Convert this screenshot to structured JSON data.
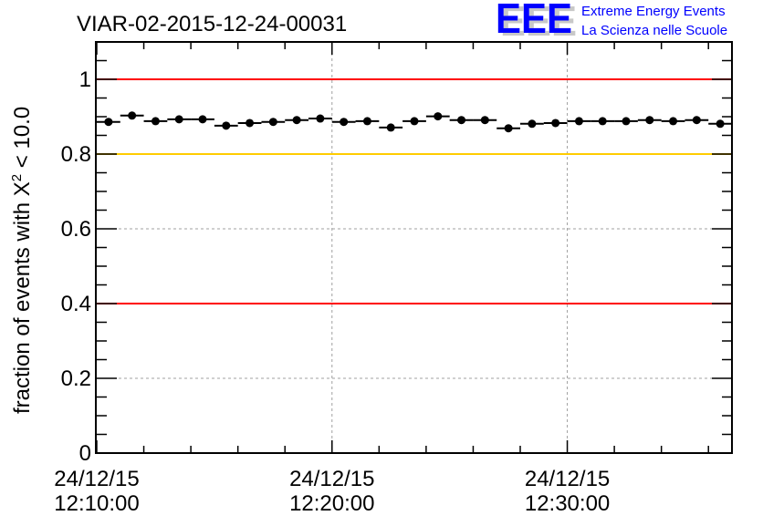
{
  "logo": {
    "letters": "EEE",
    "line1": "Extreme Energy Events",
    "line2": "La Scienza nelle Scuole"
  },
  "colors": {
    "logo": "#0000ff",
    "red_line": "#ff0000",
    "yellow_line": "#ffcc00",
    "grid": "#a0a0a0"
  },
  "chart_data": {
    "type": "scatter",
    "title": "VIAR-02-2015-12-24-00031",
    "ylabel": "fraction of events with X",
    "ylabel_sup": "2",
    "ylabel_suffix": " < 10.0",
    "xlabel": "",
    "x_unit": "minutes after 24/12/15 12:10:00",
    "xlim": [
      0,
      27
    ],
    "ylim": [
      0,
      1.1
    ],
    "grid": true,
    "y_ticks": [
      {
        "value": 0,
        "label": "0"
      },
      {
        "value": 0.2,
        "label": "0.2"
      },
      {
        "value": 0.4,
        "label": "0.4"
      },
      {
        "value": 0.6,
        "label": "0.6"
      },
      {
        "value": 0.8,
        "label": "0.8"
      },
      {
        "value": 1,
        "label": "1"
      }
    ],
    "x_ticks": [
      {
        "value": 0,
        "date": "24/12/15",
        "time": "12:10:00"
      },
      {
        "value": 10,
        "date": "24/12/15",
        "time": "12:20:00"
      },
      {
        "value": 20,
        "date": "24/12/15",
        "time": "12:30:00"
      }
    ],
    "reference_lines": [
      {
        "y": 1.0,
        "color": "red"
      },
      {
        "y": 0.8,
        "color": "yellow"
      },
      {
        "y": 0.4,
        "color": "red"
      }
    ],
    "bin_width": 1,
    "x": [
      0.5,
      1.5,
      2.5,
      3.5,
      4.5,
      5.5,
      6.5,
      7.5,
      8.5,
      9.5,
      10.5,
      11.5,
      12.5,
      13.5,
      14.5,
      15.5,
      16.5,
      17.5,
      18.5,
      19.5,
      20.5,
      21.5,
      22.5,
      23.5,
      24.5,
      25.5,
      26.5
    ],
    "y": [
      0.886,
      0.903,
      0.888,
      0.893,
      0.893,
      0.876,
      0.883,
      0.886,
      0.891,
      0.895,
      0.886,
      0.888,
      0.871,
      0.888,
      0.901,
      0.891,
      0.891,
      0.869,
      0.881,
      0.883,
      0.888,
      0.888,
      0.888,
      0.891,
      0.888,
      0.891,
      0.881
    ]
  }
}
